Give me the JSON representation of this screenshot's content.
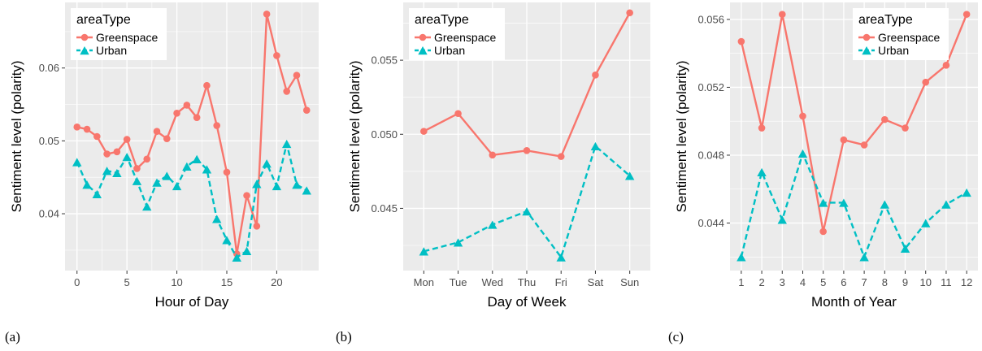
{
  "colors": {
    "greenspace": "#f8766d",
    "urban": "#00bfc4",
    "panel_bg": "#ebebeb",
    "grid": "#ffffff"
  },
  "chart_data": [
    {
      "type": "line",
      "panel_label": "(a)",
      "xlabel": "Hour of Day",
      "ylabel": "Sentiment level (polarity)",
      "x": [
        0,
        1,
        2,
        3,
        4,
        5,
        6,
        7,
        8,
        9,
        10,
        11,
        12,
        13,
        14,
        15,
        16,
        17,
        18,
        19,
        20,
        21,
        22,
        23
      ],
      "xlim": [
        -1.2,
        24.2
      ],
      "ylim": [
        0.0322,
        0.069
      ],
      "x_ticks": [
        0,
        5,
        10,
        15,
        20
      ],
      "x_tick_labels": [
        "0",
        "5",
        "10",
        "15",
        "20"
      ],
      "y_ticks": [
        0.04,
        0.05,
        0.06
      ],
      "y_tick_labels": [
        "0.04",
        "0.05",
        "0.06"
      ],
      "legend": {
        "title": "areaType",
        "position": "top-left"
      },
      "grid": true,
      "series": [
        {
          "name": "Greenspace",
          "marker": "circle",
          "line": "solid",
          "values": [
            0.0519,
            0.0516,
            0.0506,
            0.0482,
            0.0485,
            0.0502,
            0.0462,
            0.0475,
            0.0513,
            0.0503,
            0.0538,
            0.0549,
            0.0532,
            0.0576,
            0.0521,
            0.0457,
            0.0345,
            0.0425,
            0.0383,
            0.0674,
            0.0617,
            0.0568,
            0.059,
            0.0542
          ]
        },
        {
          "name": "Urban",
          "marker": "triangle",
          "line": "dashed",
          "values": [
            0.0471,
            0.044,
            0.0427,
            0.0459,
            0.0456,
            0.0478,
            0.0445,
            0.041,
            0.0443,
            0.0452,
            0.0438,
            0.0465,
            0.0475,
            0.0461,
            0.0393,
            0.0364,
            0.034,
            0.0349,
            0.0441,
            0.0469,
            0.0438,
            0.0496,
            0.044,
            0.0432
          ]
        }
      ]
    },
    {
      "type": "line",
      "panel_label": "(b)",
      "xlabel": "Day of Week",
      "ylabel": "Sentiment level (polarity)",
      "categories": [
        "Mon",
        "Tue",
        "Wed",
        "Thu",
        "Fri",
        "Sat",
        "Sun"
      ],
      "x": [
        1,
        2,
        3,
        4,
        5,
        6,
        7
      ],
      "xlim": [
        0.4,
        7.6
      ],
      "ylim": [
        0.0408,
        0.0589
      ],
      "x_ticks": [
        1,
        2,
        3,
        4,
        5,
        6,
        7
      ],
      "x_tick_labels": [
        "Mon",
        "Tue",
        "Wed",
        "Thu",
        "Fri",
        "Sat",
        "Sun"
      ],
      "y_ticks": [
        0.045,
        0.05,
        0.055
      ],
      "y_tick_labels": [
        "0.045",
        "0.050",
        "0.055"
      ],
      "legend": {
        "title": "areaType",
        "position": "top-left"
      },
      "grid": true,
      "series": [
        {
          "name": "Greenspace",
          "marker": "circle",
          "line": "solid",
          "values": [
            0.0502,
            0.0514,
            0.0486,
            0.0489,
            0.0485,
            0.054,
            0.0582
          ]
        },
        {
          "name": "Urban",
          "marker": "triangle",
          "line": "dashed",
          "values": [
            0.0421,
            0.0427,
            0.0439,
            0.0448,
            0.0417,
            0.0492,
            0.0472
          ]
        }
      ]
    },
    {
      "type": "line",
      "panel_label": "(c)",
      "xlabel": "Month of Year",
      "ylabel": "Sentiment level (polarity)",
      "x": [
        1,
        2,
        3,
        4,
        5,
        6,
        7,
        8,
        9,
        10,
        11,
        12
      ],
      "xlim": [
        0.45,
        12.55
      ],
      "ylim": [
        0.0412,
        0.057
      ],
      "x_ticks": [
        1,
        2,
        3,
        4,
        5,
        6,
        7,
        8,
        9,
        10,
        11,
        12
      ],
      "x_tick_labels": [
        "1",
        "2",
        "3",
        "4",
        "5",
        "6",
        "7",
        "8",
        "9",
        "10",
        "11",
        "12"
      ],
      "y_ticks": [
        0.044,
        0.048,
        0.052,
        0.056
      ],
      "y_tick_labels": [
        "0.044",
        "0.048",
        "0.052",
        "0.056"
      ],
      "legend": {
        "title": "areaType",
        "position": "top-right"
      },
      "grid": true,
      "series": [
        {
          "name": "Greenspace",
          "marker": "circle",
          "line": "solid",
          "values": [
            0.0547,
            0.0496,
            0.0563,
            0.0503,
            0.0435,
            0.0489,
            0.0486,
            0.0501,
            0.0496,
            0.0523,
            0.0533,
            0.0563
          ]
        },
        {
          "name": "Urban",
          "marker": "triangle",
          "line": "dashed",
          "values": [
            0.042,
            0.047,
            0.0442,
            0.0481,
            0.0452,
            0.0452,
            0.042,
            0.0451,
            0.0425,
            0.044,
            0.0451,
            0.0458
          ]
        }
      ]
    }
  ]
}
